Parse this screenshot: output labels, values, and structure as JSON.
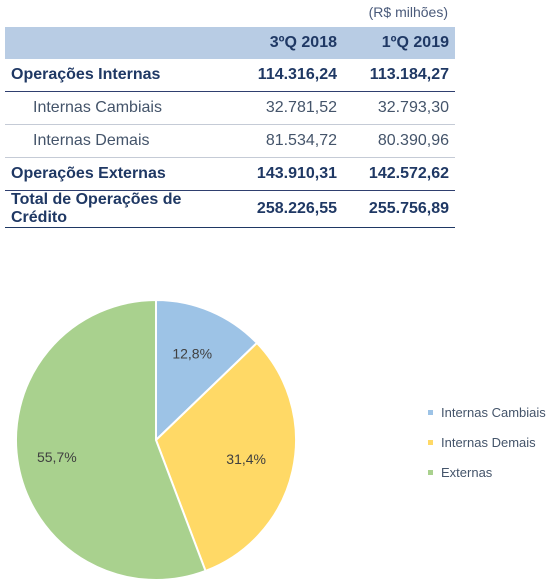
{
  "table": {
    "unit": "(R$ milhões)",
    "headers": [
      "",
      "3ºQ 2018",
      "1ºQ 2019"
    ],
    "rows": [
      {
        "label": "Operações Internas",
        "v1": "114.316,24",
        "v2": "113.184,27",
        "style": "bold"
      },
      {
        "label": "Internas Cambiais",
        "v1": "32.781,52",
        "v2": "32.793,30",
        "style": "sub"
      },
      {
        "label": "Internas Demais",
        "v1": "81.534,72",
        "v2": "80.390,96",
        "style": "sub"
      },
      {
        "label": "Operações Externas",
        "v1": "143.910,31",
        "v2": "142.572,62",
        "style": "bold"
      },
      {
        "label": "Total de Operações de Crédito",
        "v1": "258.226,55",
        "v2": "255.756,89",
        "style": "bold total"
      }
    ]
  },
  "chart_data": {
    "type": "pie",
    "slices": [
      {
        "name": "Internas Cambiais",
        "value": 12.8,
        "label": "12,8%",
        "color": "#9dc3e6"
      },
      {
        "name": "Internas Demais",
        "value": 31.4,
        "label": "31,4%",
        "color": "#ffd966"
      },
      {
        "name": "Externas",
        "value": 55.7,
        "label": "55,7%",
        "color": "#a9d18e"
      }
    ],
    "legend_position": "right"
  }
}
